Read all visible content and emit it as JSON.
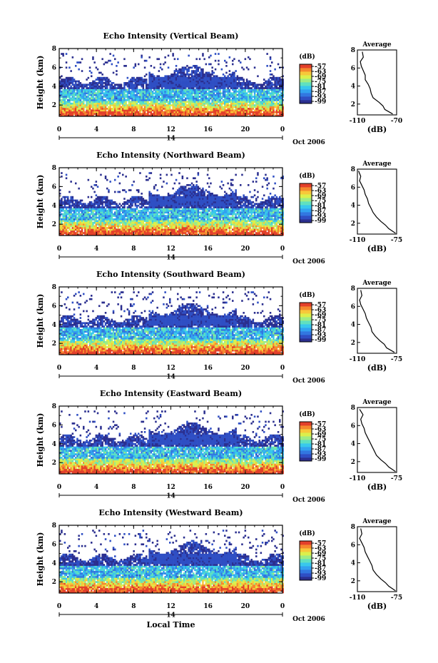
{
  "chart_data": [
    {
      "type": "heatmap",
      "title": "Echo Intensity (Vertical Beam)",
      "ylabel": "Height (km)",
      "xlabel": "",
      "x_ticks": [
        "0",
        "4",
        "8",
        "12",
        "16",
        "20",
        "0"
      ],
      "y_ticks": [
        "2",
        "4",
        "6",
        "8"
      ],
      "xlim": [
        0,
        24
      ],
      "ylim": [
        0.8,
        8
      ],
      "date_label": "14",
      "month_label": "Oct 2006",
      "colorbar": {
        "unit": "(dB)",
        "ticks": [
          "-57",
          "-63",
          "-69",
          "-75",
          "-81",
          "-87",
          "-93",
          "-99"
        ],
        "range": [
          -99,
          -57
        ]
      },
      "profile": {
        "title": "Average",
        "xlabel": "(dB)",
        "x_ticks": [
          "-110",
          "-70"
        ],
        "y_ticks": [
          "2",
          "4",
          "6",
          "8"
        ],
        "points": [
          [
            -74,
            0.9
          ],
          [
            -82,
            1.4
          ],
          [
            -84,
            1.8
          ],
          [
            -88,
            2.2
          ],
          [
            -94,
            2.7
          ],
          [
            -96,
            3.2
          ],
          [
            -97,
            3.7
          ],
          [
            -99,
            4.2
          ],
          [
            -102,
            4.7
          ],
          [
            -102,
            5.2
          ],
          [
            -104,
            5.7
          ],
          [
            -106,
            6.2
          ],
          [
            -107,
            6.7
          ],
          [
            -104,
            7.2
          ],
          [
            -105,
            7.8
          ]
        ]
      }
    },
    {
      "type": "heatmap",
      "title": "Echo Intensity (Northward Beam)",
      "ylabel": "Height (km)",
      "xlabel": "",
      "x_ticks": [
        "0",
        "4",
        "8",
        "12",
        "16",
        "20",
        "0"
      ],
      "y_ticks": [
        "2",
        "4",
        "6",
        "8"
      ],
      "xlim": [
        0,
        24
      ],
      "ylim": [
        0.8,
        8
      ],
      "date_label": "14",
      "month_label": "Oct 2006",
      "colorbar": {
        "unit": "(dB)",
        "ticks": [
          "-57",
          "-63",
          "-69",
          "-75",
          "-81",
          "-87",
          "-93",
          "-99"
        ],
        "range": [
          -99,
          -57
        ]
      },
      "profile": {
        "title": "Average",
        "xlabel": "(dB)",
        "x_ticks": [
          "-110",
          "-75"
        ],
        "y_ticks": [
          "2",
          "4",
          "6",
          "8"
        ],
        "points": [
          [
            -76,
            0.9
          ],
          [
            -82,
            1.4
          ],
          [
            -85,
            1.8
          ],
          [
            -89,
            2.2
          ],
          [
            -93,
            2.7
          ],
          [
            -96,
            3.2
          ],
          [
            -98,
            3.7
          ],
          [
            -100,
            4.2
          ],
          [
            -101,
            4.7
          ],
          [
            -103,
            5.2
          ],
          [
            -104,
            5.7
          ],
          [
            -106,
            6.2
          ],
          [
            -108,
            6.7
          ],
          [
            -107,
            7.2
          ],
          [
            -109,
            7.8
          ]
        ]
      }
    },
    {
      "type": "heatmap",
      "title": "Echo Intensity (Southward Beam)",
      "ylabel": "Height (km)",
      "xlabel": "",
      "x_ticks": [
        "0",
        "4",
        "8",
        "12",
        "16",
        "20",
        "0"
      ],
      "y_ticks": [
        "2",
        "4",
        "6",
        "8"
      ],
      "xlim": [
        0,
        24
      ],
      "ylim": [
        0.8,
        8
      ],
      "date_label": "14",
      "month_label": "Oct 2006",
      "colorbar": {
        "unit": "(dB)",
        "ticks": [
          "-57",
          "-63",
          "-69",
          "-75",
          "-81",
          "-87",
          "-93",
          "-99"
        ],
        "range": [
          -99,
          -57
        ]
      },
      "profile": {
        "title": "Average",
        "xlabel": "(dB)",
        "x_ticks": [
          "-110",
          "-75"
        ],
        "y_ticks": [
          "2",
          "4",
          "6",
          "8"
        ],
        "points": [
          [
            -77,
            0.9
          ],
          [
            -84,
            1.4
          ],
          [
            -86,
            1.8
          ],
          [
            -90,
            2.2
          ],
          [
            -94,
            2.7
          ],
          [
            -97,
            3.2
          ],
          [
            -98,
            3.7
          ],
          [
            -100,
            4.2
          ],
          [
            -102,
            4.7
          ],
          [
            -103,
            5.2
          ],
          [
            -105,
            5.7
          ],
          [
            -107,
            6.2
          ],
          [
            -108,
            6.7
          ],
          [
            -106,
            7.2
          ],
          [
            -107,
            7.8
          ]
        ]
      }
    },
    {
      "type": "heatmap",
      "title": "Echo Intensity (Eastward Beam)",
      "ylabel": "Height (km)",
      "xlabel": "",
      "x_ticks": [
        "0",
        "4",
        "8",
        "12",
        "16",
        "20",
        "0"
      ],
      "y_ticks": [
        "2",
        "4",
        "6",
        "8"
      ],
      "xlim": [
        0,
        24
      ],
      "ylim": [
        0.8,
        8
      ],
      "date_label": "14",
      "month_label": "Oct 2006",
      "colorbar": {
        "unit": "(dB)",
        "ticks": [
          "-57",
          "-63",
          "-69",
          "-75",
          "-81",
          "-87",
          "-93",
          "-99"
        ],
        "range": [
          -99,
          -57
        ]
      },
      "profile": {
        "title": "Average",
        "xlabel": "(dB)",
        "x_ticks": [
          "-110",
          "-75"
        ],
        "y_ticks": [
          "2",
          "4",
          "6",
          "8"
        ],
        "points": [
          [
            -76,
            0.9
          ],
          [
            -82,
            1.4
          ],
          [
            -85,
            1.8
          ],
          [
            -89,
            2.2
          ],
          [
            -93,
            2.7
          ],
          [
            -95,
            3.2
          ],
          [
            -97,
            3.7
          ],
          [
            -99,
            4.2
          ],
          [
            -101,
            4.7
          ],
          [
            -103,
            5.2
          ],
          [
            -104,
            5.7
          ],
          [
            -106,
            6.2
          ],
          [
            -107,
            6.7
          ],
          [
            -105,
            7.2
          ],
          [
            -108,
            7.8
          ]
        ]
      }
    },
    {
      "type": "heatmap",
      "title": "Echo Intensity (Westward Beam)",
      "ylabel": "Height (km)",
      "xlabel": "Local Time",
      "x_ticks": [
        "0",
        "4",
        "8",
        "12",
        "16",
        "20",
        "0"
      ],
      "y_ticks": [
        "2",
        "4",
        "6",
        "8"
      ],
      "xlim": [
        0,
        24
      ],
      "ylim": [
        0.8,
        8
      ],
      "date_label": "14",
      "month_label": "Oct 2006",
      "colorbar": {
        "unit": "(dB)",
        "ticks": [
          "-57",
          "-63",
          "-69",
          "-75",
          "-81",
          "-87",
          "-93",
          "-99"
        ],
        "range": [
          -99,
          -57
        ]
      },
      "profile": {
        "title": "Average",
        "xlabel": "(dB)",
        "x_ticks": [
          "-110",
          "-75"
        ],
        "y_ticks": [
          "2",
          "4",
          "6",
          "8"
        ],
        "points": [
          [
            -76,
            0.9
          ],
          [
            -82,
            1.4
          ],
          [
            -85,
            1.8
          ],
          [
            -89,
            2.2
          ],
          [
            -93,
            2.7
          ],
          [
            -96,
            3.2
          ],
          [
            -97,
            3.7
          ],
          [
            -99,
            4.2
          ],
          [
            -101,
            4.7
          ],
          [
            -103,
            5.2
          ],
          [
            -104,
            5.7
          ],
          [
            -106,
            6.2
          ],
          [
            -108,
            6.7
          ],
          [
            -106,
            7.2
          ],
          [
            -107,
            7.8
          ]
        ]
      }
    }
  ],
  "colors": {
    "colormap": [
      "#2b2f8f",
      "#2f4fc4",
      "#3277e0",
      "#32a2f0",
      "#38c8ec",
      "#5fe0c0",
      "#9fec84",
      "#dcef4c",
      "#f7c83a",
      "#f5882e",
      "#e3402a"
    ]
  }
}
